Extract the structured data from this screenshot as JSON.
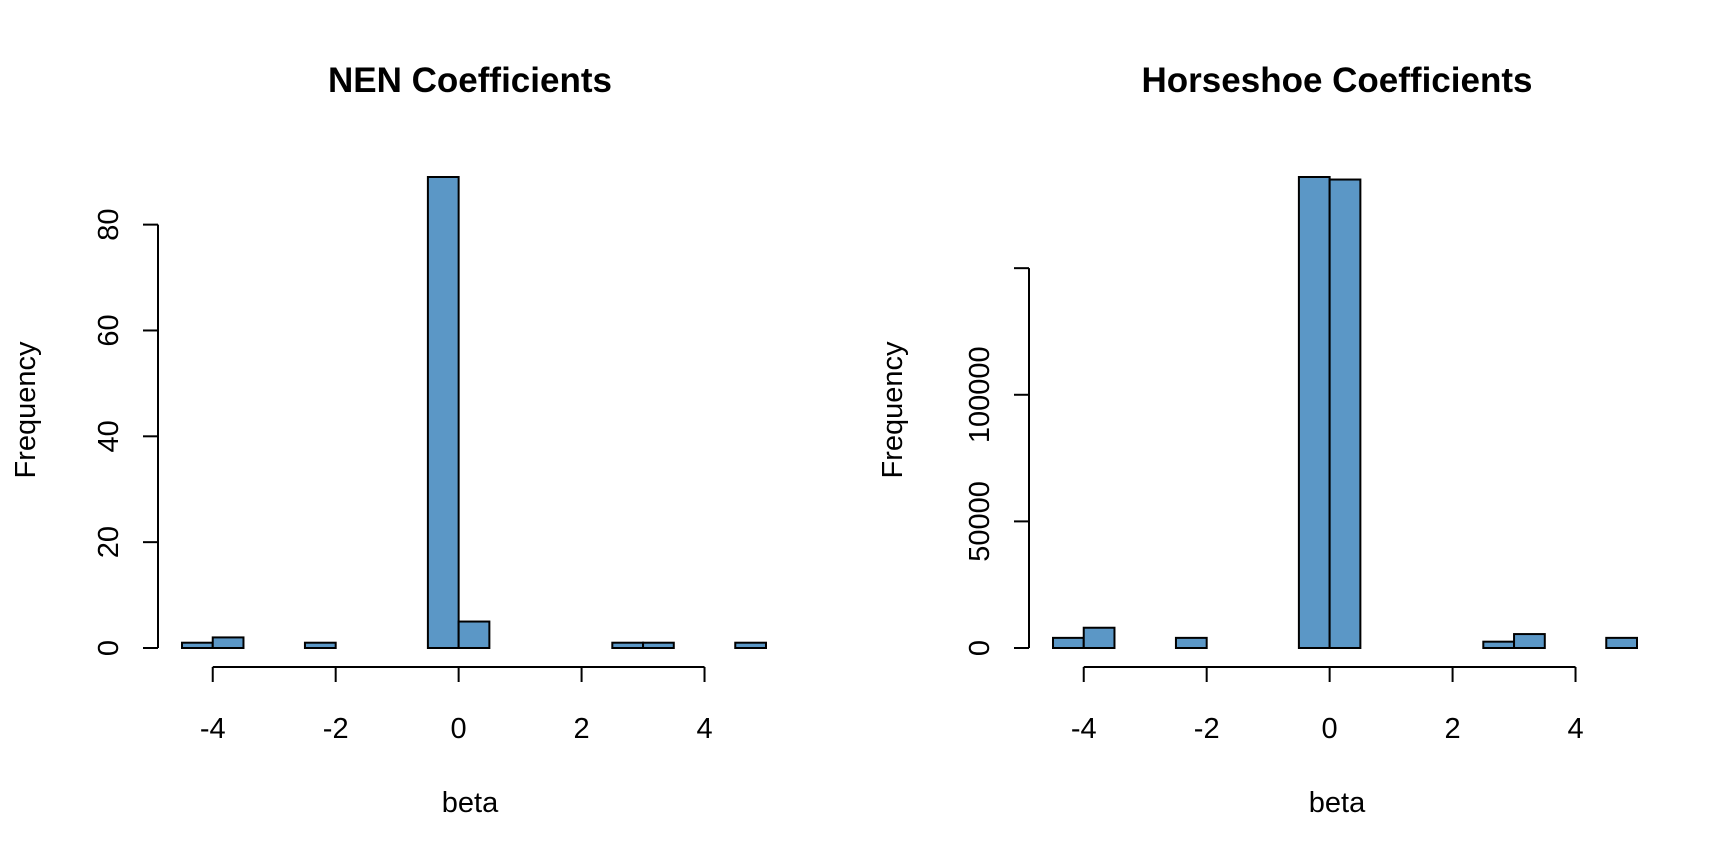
{
  "chart_data": [
    {
      "type": "bar",
      "title": "NEN Coefficients",
      "xlabel": "beta",
      "ylabel": "Frequency",
      "bar_color": "#5b97c6",
      "bin_edges": [
        -4.5,
        -4,
        -3.5,
        -3,
        -2.5,
        -2,
        -1.5,
        -1,
        -0.5,
        0,
        0.5,
        1,
        1.5,
        2,
        2.5,
        3,
        3.5,
        4,
        4.5,
        5
      ],
      "counts": [
        1,
        2,
        0,
        0,
        1,
        0,
        0,
        0,
        89,
        5,
        0,
        0,
        0,
        0,
        1,
        1,
        0,
        0,
        1
      ],
      "xticks": [
        -4,
        -2,
        0,
        2,
        4
      ],
      "xtick_labels": [
        "-4",
        "-2",
        "0",
        "2",
        "4"
      ],
      "yticks": [
        0,
        20,
        40,
        60,
        80
      ],
      "ytick_labels": [
        "0",
        "20",
        "40",
        "60",
        "80"
      ],
      "xlim": [
        -4.5,
        5
      ],
      "ylim": [
        0,
        89
      ]
    },
    {
      "type": "bar",
      "title": "Horseshoe Coefficients",
      "xlabel": "beta",
      "ylabel": "Frequency",
      "bar_color": "#5b97c6",
      "bin_edges": [
        -4.5,
        -4,
        -3.5,
        -3,
        -2.5,
        -2,
        -1.5,
        -1,
        -0.5,
        0,
        0.5,
        1,
        1.5,
        2,
        2.5,
        3,
        3.5,
        4,
        4.5,
        5
      ],
      "counts": [
        4000,
        8000,
        0,
        0,
        4000,
        0,
        0,
        0,
        186000,
        185000,
        0,
        0,
        0,
        0,
        2500,
        5500,
        0,
        0,
        4000
      ],
      "xticks": [
        -4,
        -2,
        0,
        2,
        4
      ],
      "xtick_labels": [
        "-4",
        "-2",
        "0",
        "2",
        "4"
      ],
      "yticks": [
        0,
        50000,
        100000,
        150000
      ],
      "ytick_labels": [
        "0",
        "50000",
        "100000",
        ""
      ],
      "xlim": [
        -4.5,
        5
      ],
      "ylim": [
        0,
        186000
      ]
    }
  ]
}
